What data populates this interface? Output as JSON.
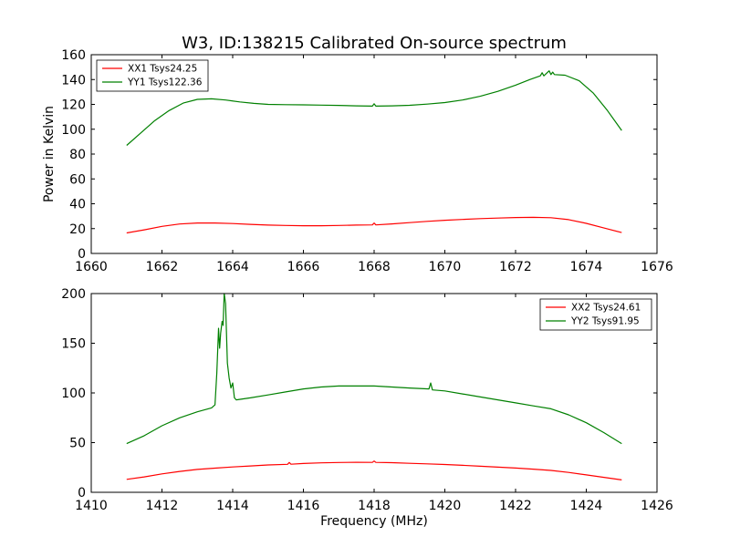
{
  "title": "W3, ID:138215 Calibrated On-source spectrum",
  "chart_data": [
    {
      "type": "line",
      "title": "W3, ID:138215 Calibrated On-source spectrum",
      "xlabel": "",
      "ylabel": "Power in Kelvin",
      "xlim": [
        1660,
        1676
      ],
      "ylim": [
        0,
        160
      ],
      "xticks": [
        1660,
        1662,
        1664,
        1666,
        1668,
        1670,
        1672,
        1674,
        1676
      ],
      "yticks": [
        0,
        20,
        40,
        60,
        80,
        100,
        120,
        140,
        160
      ],
      "grid": false,
      "legend_position": "top-left",
      "series": [
        {
          "name": "XX1 Tsys24.25",
          "color": "#ff0000",
          "x": [
            1661.0,
            1661.5,
            1662.0,
            1662.5,
            1663.0,
            1663.5,
            1664.0,
            1664.5,
            1665.0,
            1665.5,
            1666.0,
            1666.5,
            1667.0,
            1667.5,
            1667.95,
            1668.0,
            1668.05,
            1668.5,
            1669.0,
            1669.5,
            1670.0,
            1670.5,
            1671.0,
            1671.5,
            1672.0,
            1672.5,
            1673.0,
            1673.5,
            1674.0,
            1674.5,
            1675.0
          ],
          "y": [
            16.5,
            19.0,
            21.8,
            23.7,
            24.5,
            24.5,
            24.1,
            23.4,
            22.8,
            22.5,
            22.3,
            22.3,
            22.5,
            22.8,
            23.0,
            24.5,
            23.0,
            23.8,
            24.8,
            25.8,
            26.7,
            27.4,
            28.0,
            28.5,
            28.9,
            29.1,
            28.8,
            27.2,
            24.2,
            20.5,
            16.8
          ]
        },
        {
          "name": "YY1 Tsys122.36",
          "color": "#008000",
          "x": [
            1661.0,
            1661.4,
            1661.8,
            1662.2,
            1662.6,
            1663.0,
            1663.4,
            1663.8,
            1664.2,
            1664.6,
            1665.0,
            1665.5,
            1666.0,
            1666.5,
            1667.0,
            1667.5,
            1667.95,
            1668.0,
            1668.05,
            1668.5,
            1669.0,
            1669.5,
            1670.0,
            1670.5,
            1671.0,
            1671.5,
            1672.0,
            1672.4,
            1672.7,
            1672.75,
            1672.8,
            1672.95,
            1673.0,
            1673.05,
            1673.1,
            1673.4,
            1673.8,
            1674.2,
            1674.6,
            1675.0
          ],
          "y": [
            87,
            97,
            107,
            115,
            121,
            124,
            124.5,
            123.5,
            122,
            120.8,
            120,
            119.8,
            119.6,
            119.4,
            119.2,
            118.8,
            118.6,
            120.5,
            118.6,
            118.8,
            119.3,
            120.2,
            121.5,
            123.5,
            126.5,
            130.5,
            135.5,
            140,
            143,
            145.5,
            143,
            147,
            144,
            146,
            144,
            143.5,
            139,
            129,
            115,
            99
          ]
        }
      ]
    },
    {
      "type": "line",
      "title": "",
      "xlabel": "Frequency (MHz)",
      "ylabel": "",
      "xlim": [
        1410,
        1426
      ],
      "ylim": [
        0,
        200
      ],
      "xticks": [
        1410,
        1412,
        1414,
        1416,
        1418,
        1420,
        1422,
        1424,
        1426
      ],
      "yticks": [
        0,
        50,
        100,
        150,
        200
      ],
      "grid": false,
      "legend_position": "top-right",
      "series": [
        {
          "name": "XX2 Tsys24.61",
          "color": "#ff0000",
          "x": [
            1411.0,
            1411.5,
            1412.0,
            1412.5,
            1413.0,
            1413.5,
            1414.0,
            1414.5,
            1415.0,
            1415.55,
            1415.6,
            1415.65,
            1416.0,
            1416.5,
            1417.0,
            1417.5,
            1417.95,
            1418.0,
            1418.05,
            1418.5,
            1419.0,
            1419.5,
            1420.0,
            1420.5,
            1421.0,
            1421.5,
            1422.0,
            1422.5,
            1423.0,
            1423.5,
            1424.0,
            1424.5,
            1425.0
          ],
          "y": [
            13,
            15.5,
            18.5,
            21,
            23,
            24.3,
            25.5,
            26.5,
            27.5,
            28.2,
            30,
            28.3,
            29,
            29.6,
            30,
            30.2,
            30.1,
            31.5,
            30.1,
            29.8,
            29.2,
            28.6,
            28,
            27.2,
            26.2,
            25.3,
            24.4,
            23.3,
            22,
            20,
            17.5,
            15,
            12.5
          ]
        },
        {
          "name": "YY2 Tsys91.95",
          "color": "#008000",
          "x": [
            1411.0,
            1411.5,
            1412.0,
            1412.5,
            1413.0,
            1413.4,
            1413.5,
            1413.55,
            1413.6,
            1413.63,
            1413.66,
            1413.7,
            1413.73,
            1413.76,
            1413.8,
            1413.85,
            1413.9,
            1413.95,
            1414.0,
            1414.05,
            1414.1,
            1414.5,
            1415.0,
            1415.5,
            1416.0,
            1416.5,
            1417.0,
            1417.5,
            1418.0,
            1418.5,
            1419.0,
            1419.55,
            1419.6,
            1419.65,
            1420.0,
            1420.5,
            1421.0,
            1421.5,
            1422.0,
            1422.5,
            1423.0,
            1423.5,
            1424.0,
            1424.5,
            1425.0
          ],
          "y": [
            49,
            57,
            67,
            75,
            81,
            85,
            88,
            120,
            165,
            145,
            160,
            172,
            168,
            200,
            190,
            130,
            115,
            105,
            110,
            95,
            93,
            95,
            98,
            101,
            104,
            106,
            107,
            107,
            107,
            106,
            105,
            104,
            110,
            103,
            102,
            99,
            96,
            93,
            90,
            87,
            84,
            78,
            70,
            60,
            49
          ]
        }
      ]
    }
  ]
}
